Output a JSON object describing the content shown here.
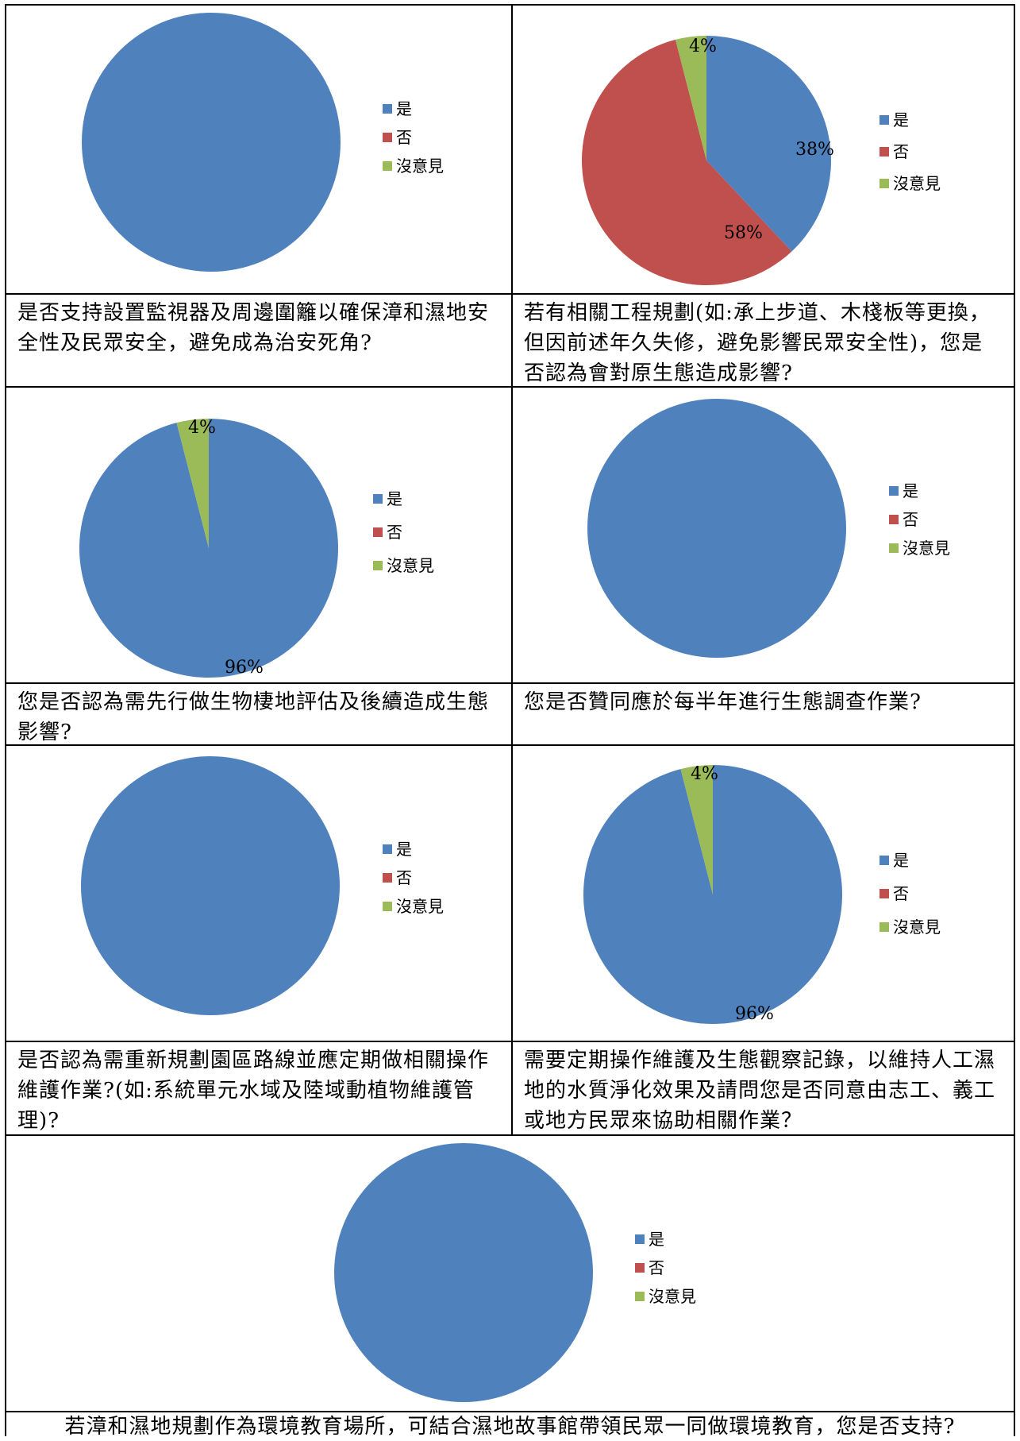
{
  "legend_labels": [
    "是",
    "否",
    "沒意見"
  ],
  "colors": {
    "yes": "#4F81BD",
    "no": "#C0504D",
    "neutral": "#9BBB59"
  },
  "chart_data": [
    {
      "type": "pie",
      "categories": [
        "是",
        "否",
        "沒意見"
      ],
      "values": [
        100,
        0,
        0
      ],
      "labels": [
        "",
        "",
        ""
      ],
      "caption": "是否支持設置監視器及周邊圍籬以確保漳和濕地安全性及民眾安全，避免成為治安死角?"
    },
    {
      "type": "pie",
      "categories": [
        "是",
        "否",
        "沒意見"
      ],
      "values": [
        38,
        58,
        4
      ],
      "labels": [
        "38%",
        "58%",
        "4%"
      ],
      "caption": "若有相關工程規劃(如:承上步道、木棧板等更換，但因前述年久失修，避免影響民眾安全性)，您是否認為會對原生態造成影響?"
    },
    {
      "type": "pie",
      "categories": [
        "是",
        "否",
        "沒意見"
      ],
      "values": [
        96,
        0,
        4
      ],
      "labels": [
        "96%",
        "",
        "4%"
      ],
      "caption": "您是否認為需先行做生物棲地評估及後續造成生態影響?"
    },
    {
      "type": "pie",
      "categories": [
        "是",
        "否",
        "沒意見"
      ],
      "values": [
        100,
        0,
        0
      ],
      "labels": [
        "",
        "",
        ""
      ],
      "caption": "您是否贊同應於每半年進行生態調查作業?"
    },
    {
      "type": "pie",
      "categories": [
        "是",
        "否",
        "沒意見"
      ],
      "values": [
        100,
        0,
        0
      ],
      "labels": [
        "",
        "",
        ""
      ],
      "caption": "是否認為需重新規劃園區路線並應定期做相關操作維護作業?(如:系統單元水域及陸域動植物維護管理)?"
    },
    {
      "type": "pie",
      "categories": [
        "是",
        "否",
        "沒意見"
      ],
      "values": [
        96,
        0,
        4
      ],
      "labels": [
        "96%",
        "",
        "4%"
      ],
      "caption": "需要定期操作維護及生態觀察記錄，以維持人工濕地的水質淨化效果及請問您是否同意由志工、義工或地方民眾來協助相關作業？"
    },
    {
      "type": "pie",
      "categories": [
        "是",
        "否",
        "沒意見"
      ],
      "values": [
        100,
        0,
        0
      ],
      "labels": [
        "",
        "",
        ""
      ],
      "caption": "若漳和濕地規劃作為環境教育場所，可結合濕地故事館帶領民眾一同做環境教育，您是否支持?"
    }
  ]
}
